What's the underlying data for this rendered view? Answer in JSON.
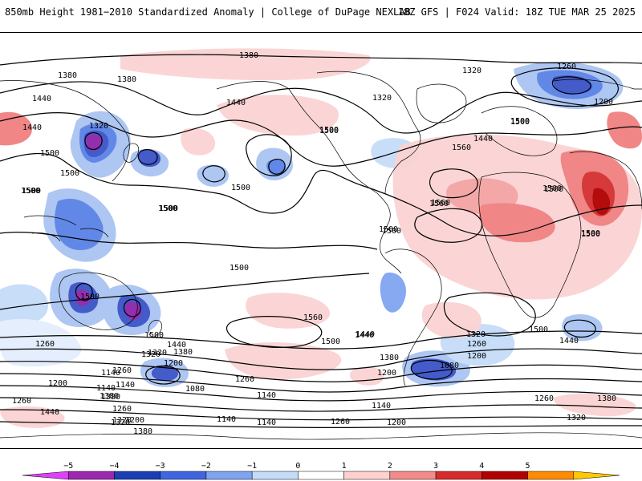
{
  "header": {
    "left_title": "850mb Height 1981−2010 Standardized Anomaly | College of DuPage NEXLAB",
    "right_title": "18Z GFS | F024 Valid: 18Z TUE MAR 25 2025"
  },
  "map": {
    "contour_labels": [
      "1380",
      "1320",
      "1260",
      "1200",
      "1140",
      "1080",
      "1440",
      "1500",
      "1560"
    ],
    "label_instances": [
      {
        "text": "1380",
        "ref": "north-pacific"
      },
      {
        "text": "1380",
        "ref": "west-pacific-a"
      },
      {
        "text": "1380",
        "ref": "west-pacific-b"
      },
      {
        "text": "1440",
        "ref": "w-asia"
      },
      {
        "text": "1440",
        "ref": "japan"
      },
      {
        "text": "1440",
        "ref": "alaska"
      },
      {
        "text": "1320",
        "ref": "n-atlantic"
      },
      {
        "text": "1320",
        "ref": "w-canada"
      },
      {
        "text": "1320",
        "ref": "siberia"
      },
      {
        "text": "1260",
        "ref": "ne-atlantic"
      },
      {
        "text": "1200",
        "ref": "scandinavia"
      },
      {
        "text": "1500",
        "ref": "conus"
      },
      {
        "text": "1500",
        "ref": "n-atlantic-s"
      },
      {
        "text": "1500",
        "ref": "africa-n"
      },
      {
        "text": "1500",
        "ref": "africa-s"
      },
      {
        "text": "1500",
        "ref": "sw-pacific"
      },
      {
        "text": "1500",
        "ref": "s-pacific"
      },
      {
        "text": "1500",
        "ref": "s-atlantic"
      },
      {
        "text": "1560",
        "ref": "atlantic-high"
      },
      {
        "text": "1560",
        "ref": "s-pacific-high"
      },
      {
        "text": "1560",
        "ref": "n-atlantic-high"
      },
      {
        "text": "1440",
        "ref": "s-america"
      },
      {
        "text": "1440",
        "ref": "s-atlantic-w"
      },
      {
        "text": "1380",
        "ref": "cape-horn"
      },
      {
        "text": "1320",
        "ref": "s-ocean-w"
      },
      {
        "text": "1260",
        "ref": "s-ocean-wa"
      },
      {
        "text": "1200",
        "ref": "s-ocean-wb"
      },
      {
        "text": "1140",
        "ref": "s-ocean-wc"
      },
      {
        "text": "1080",
        "ref": "s-ocean-low"
      },
      {
        "text": "1260",
        "ref": "s-pac-1260"
      },
      {
        "text": "1200",
        "ref": "drake"
      },
      {
        "text": "1080",
        "ref": "weddell"
      },
      {
        "text": "1140",
        "ref": "s-ocean-c"
      },
      {
        "text": "1140",
        "ref": "s-ocean-d"
      },
      {
        "text": "1320",
        "ref": "antarctic-a"
      },
      {
        "text": "1260",
        "ref": "antarctic-b"
      },
      {
        "text": "1200",
        "ref": "antarctic-c"
      },
      {
        "text": "1320",
        "ref": "s-ind-a"
      },
      {
        "text": "1260",
        "ref": "s-ind-b"
      },
      {
        "text": "1140",
        "ref": "s-ind-c"
      },
      {
        "text": "1380",
        "ref": "s-ind-d"
      },
      {
        "text": "1500",
        "ref": "s-ind-e"
      },
      {
        "text": "1440",
        "ref": "s-ind-f"
      },
      {
        "text": "1380",
        "ref": "s-ind-g"
      },
      {
        "text": "1260",
        "ref": "se-ind"
      },
      {
        "text": "1380",
        "ref": "se-ind-2"
      },
      {
        "text": "1320",
        "ref": "s-ocean-b"
      },
      {
        "text": "1260",
        "ref": "s-ocean-a"
      },
      {
        "text": "1140",
        "ref": "s-ocean-e"
      },
      {
        "text": "1380",
        "ref": "s-ocean-f"
      },
      {
        "text": "1200",
        "ref": "s-ocean-g"
      },
      {
        "text": "1260",
        "ref": "s-ocean-h"
      },
      {
        "text": "1200",
        "ref": "s-ocean-i"
      },
      {
        "text": "1440",
        "ref": "s-ocean-j"
      },
      {
        "text": "1380",
        "ref": "s-ocean-k"
      },
      {
        "text": "1320",
        "ref": "s-ocean-l"
      },
      {
        "text": "1140",
        "ref": "s-ocean-m"
      },
      {
        "text": "1320",
        "ref": "s-ocean-n"
      },
      {
        "text": "1260",
        "ref": "s-ocean-o"
      },
      {
        "text": "1200",
        "ref": "s-ocean-p"
      },
      {
        "text": "1140",
        "ref": "s-ocean-q"
      },
      {
        "text": "1500",
        "ref": "w-ind-a"
      },
      {
        "text": "1500",
        "ref": "w-ind-b"
      },
      {
        "text": "1500",
        "ref": "aus-s"
      },
      {
        "text": "1500",
        "ref": "aus-e"
      },
      {
        "text": "1500",
        "ref": "aus-w"
      },
      {
        "text": "1500",
        "ref": "pac-c"
      },
      {
        "text": "1500",
        "ref": "pac-e"
      },
      {
        "text": "1500",
        "ref": "pac-w"
      },
      {
        "text": "1560",
        "ref": "pac-high-c"
      },
      {
        "text": "1500",
        "ref": "s-pac-e"
      },
      {
        "text": "1440",
        "ref": "s-pac-f"
      },
      {
        "text": "1500",
        "ref": "s-am-w"
      },
      {
        "text": "1500",
        "ref": "n-am-s"
      },
      {
        "text": "1500",
        "ref": "w-eur"
      },
      {
        "text": "1500",
        "ref": "n-afr"
      },
      {
        "text": "1440",
        "ref": "e-eur"
      },
      {
        "text": "1500",
        "ref": "med"
      }
    ]
  },
  "legend": {
    "ticks": [
      "−5",
      "−4",
      "−3",
      "−2",
      "−1",
      "0",
      "1",
      "2",
      "3",
      "4",
      "5"
    ],
    "colors": [
      "#e040fb",
      "#9c27b0",
      "#1a3fb5",
      "#3f66e0",
      "#7fa4f0",
      "#c5dcf8",
      "#ffffff",
      "#ffd0d0",
      "#f48a8a",
      "#d92b2b",
      "#b30000",
      "#ff8c00",
      "#ffc800"
    ]
  }
}
